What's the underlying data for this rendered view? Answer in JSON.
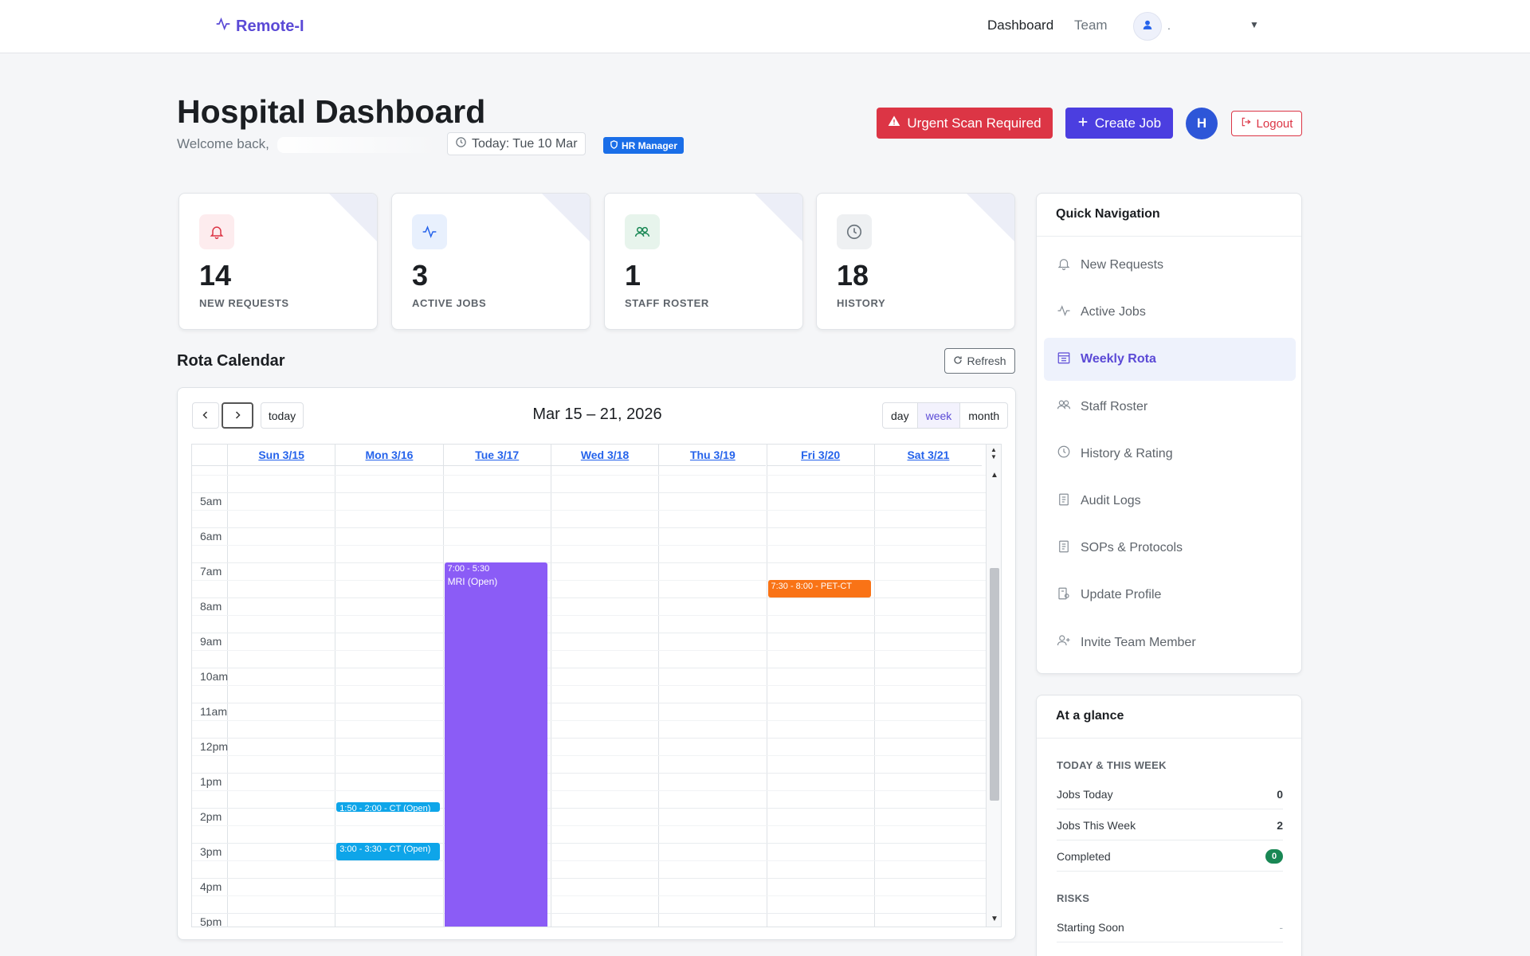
{
  "navbar": {
    "brand": "Remote-I",
    "links": [
      "Dashboard",
      "Team"
    ],
    "user_name": "."
  },
  "header": {
    "title": "Hospital Dashboard",
    "welcome": "Welcome back,",
    "today": "Today: Tue 10 Mar",
    "role_badge": "HR Manager",
    "urgent_button": "Urgent Scan Required",
    "create_button": "Create Job",
    "avatar_initial": "H",
    "logout_button": "Logout"
  },
  "stats": [
    {
      "value": "14",
      "label": "NEW REQUESTS",
      "icon": "bell-icon",
      "color": "#dc3545",
      "bg": "#fdecee"
    },
    {
      "value": "3",
      "label": "ACTIVE JOBS",
      "icon": "activity-icon",
      "color": "#2563eb",
      "bg": "#e8f0fd"
    },
    {
      "value": "1",
      "label": "STAFF ROSTER",
      "icon": "users-icon",
      "color": "#198754",
      "bg": "#e7f4ec"
    },
    {
      "value": "18",
      "label": "HISTORY",
      "icon": "clock-icon",
      "color": "#6c757d",
      "bg": "#eef0f2"
    }
  ],
  "rota": {
    "title": "Rota Calendar",
    "refresh_label": "Refresh",
    "range_title": "Mar 15 – 21, 2026",
    "today_label": "today",
    "views": [
      "day",
      "week",
      "month"
    ],
    "active_view": "week",
    "days": [
      "Sun 3/15",
      "Mon 3/16",
      "Tue 3/17",
      "Wed 3/18",
      "Thu 3/19",
      "Fri 3/20",
      "Sat 3/21"
    ],
    "times": [
      "5am",
      "6am",
      "7am",
      "8am",
      "9am",
      "10am",
      "11am",
      "12pm",
      "1pm",
      "2pm",
      "3pm",
      "4pm",
      "5pm"
    ],
    "events": [
      {
        "day": 2,
        "start": 7.0,
        "end": 17.5,
        "time": "7:00 - 5:30",
        "title": "MRI (Open)",
        "color": "#8b5cf6"
      },
      {
        "day": 5,
        "start": 7.5,
        "end": 8.0,
        "time": "7:30 - 8:00 - PET-CT",
        "title": "",
        "color": "#f97316"
      },
      {
        "day": 1,
        "start": 13.83,
        "end": 14.0,
        "time": "1:50 - 2:00 - CT (Open)",
        "title": "",
        "color": "#0ea5e9"
      },
      {
        "day": 1,
        "start": 15.0,
        "end": 15.5,
        "time": "3:00 - 3:30 - CT (Open)",
        "title": "",
        "color": "#0ea5e9"
      }
    ]
  },
  "quick_nav": {
    "title": "Quick Navigation",
    "items": [
      {
        "label": "New Requests",
        "icon": "bell-icon"
      },
      {
        "label": "Active Jobs",
        "icon": "activity-icon"
      },
      {
        "label": "Weekly Rota",
        "icon": "calendar-icon",
        "active": true
      },
      {
        "label": "Staff Roster",
        "icon": "users-icon"
      },
      {
        "label": "History & Rating",
        "icon": "clock-icon"
      },
      {
        "label": "Audit Logs",
        "icon": "document-icon"
      },
      {
        "label": "SOPs & Protocols",
        "icon": "document-icon"
      },
      {
        "label": "Update Profile",
        "icon": "profile-icon"
      },
      {
        "label": "Invite Team Member",
        "icon": "user-plus-icon"
      }
    ]
  },
  "glance": {
    "title": "At a glance",
    "section_today": "TODAY & THIS WEEK",
    "rows": [
      {
        "label": "Jobs Today",
        "value": "0"
      },
      {
        "label": "Jobs This Week",
        "value": "2"
      },
      {
        "label": "Completed",
        "value": "0"
      }
    ],
    "section_risks": "RISKS",
    "risk_rows": [
      {
        "label": "Starting Soon",
        "value": "-"
      }
    ]
  }
}
